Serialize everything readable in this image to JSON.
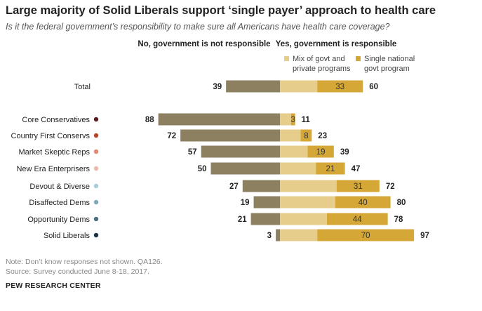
{
  "title": "Large majority of Solid Liberals support ‘single payer’ approach to health care",
  "subtitle": "Is it the federal government’s responsibility to make sure all Americans have health care coverage?",
  "colors": {
    "no": "#8c8060",
    "mix": "#e6cd8b",
    "single": "#d4a736",
    "dot_core": "#5a1d1d",
    "dot_country": "#b8442e",
    "dot_market": "#e08872",
    "dot_newera": "#ecb9ad",
    "dot_devout": "#a9cbd6",
    "dot_disaffected": "#7fa5b8",
    "dot_opportunity": "#4d6f85",
    "dot_solid": "#1f3243"
  },
  "chart_data": {
    "type": "bar",
    "orientation": "horizontal-diverging",
    "left_header": "No, government is not responsible",
    "right_header": "Yes, government is responsible",
    "legend": [
      {
        "line1": "Mix of govt and",
        "line2": "private programs",
        "color": "#e6cd8b"
      },
      {
        "line1": "Single national",
        "line2": "govt program",
        "color": "#d4a736"
      }
    ],
    "categories": [
      "Total",
      "Core Conservatives",
      "Country First Conservs",
      "Market Skeptic Reps",
      "New Era Enterprisers",
      "Devout & Diverse",
      "Disaffected Dems",
      "Opportunity Dems",
      "Solid Liberals"
    ],
    "series": [
      {
        "key": "no",
        "values": [
          39,
          88,
          72,
          57,
          50,
          27,
          19,
          21,
          3
        ]
      },
      {
        "key": "mix",
        "values": [
          27,
          8,
          15,
          20,
          26,
          41,
          40,
          34,
          27
        ]
      },
      {
        "key": "single",
        "values": [
          33,
          3,
          8,
          19,
          21,
          31,
          40,
          44,
          70
        ]
      }
    ],
    "yes_totals": [
      60,
      11,
      23,
      39,
      47,
      72,
      80,
      78,
      97
    ],
    "shown_labels": {
      "no": [
        "39",
        "88",
        "72",
        "57",
        "50",
        "27",
        "19",
        "21",
        "3"
      ],
      "single": [
        "33",
        "3",
        "8",
        "19",
        "21",
        "31",
        "40",
        "44",
        "70"
      ],
      "yes_total": [
        "60",
        "11",
        "23",
        "39",
        "47",
        "72",
        "80",
        "78",
        "97"
      ]
    }
  },
  "footnotes": [
    "Note: Don’t know responses not shown. QA126.",
    "Source: Survey conducted June 8-18, 2017."
  ],
  "org": "PEW RESEARCH CENTER"
}
